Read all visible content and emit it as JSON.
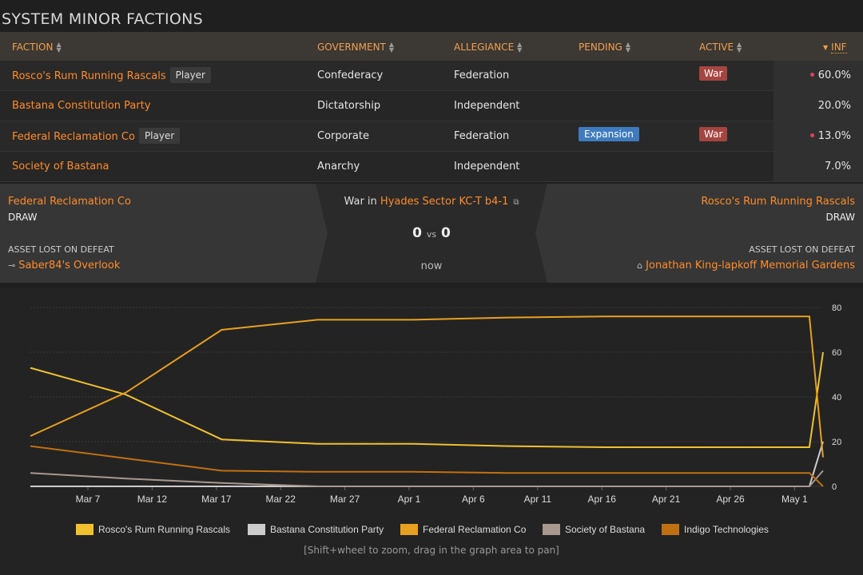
{
  "title": "SYSTEM MINOR FACTIONS",
  "columns": {
    "faction": "FACTION",
    "government": "GOVERNMENT",
    "allegiance": "ALLEGIANCE",
    "pending": "PENDING",
    "active": "ACTIVE",
    "inf": "INF"
  },
  "rows": [
    {
      "name": "Rosco's Rum Running Rascals",
      "player": "Player",
      "government": "Confederacy",
      "allegiance": "Federation",
      "pending": "",
      "active": "War",
      "inf": "60.0%",
      "dot": true
    },
    {
      "name": "Bastana Constitution Party",
      "player": "",
      "government": "Dictatorship",
      "allegiance": "Independent",
      "pending": "",
      "active": "",
      "inf": "20.0%",
      "dot": false
    },
    {
      "name": "Federal Reclamation Co",
      "player": "Player",
      "government": "Corporate",
      "allegiance": "Federation",
      "pending": "Expansion",
      "active": "War",
      "inf": "13.0%",
      "dot": true
    },
    {
      "name": "Society of Bastana",
      "player": "",
      "government": "Anarchy",
      "allegiance": "Independent",
      "pending": "",
      "active": "",
      "inf": "7.0%",
      "dot": false
    }
  ],
  "war": {
    "left_faction": "Federal Reclamation Co",
    "left_status": "DRAW",
    "left_asset_label": "ASSET LOST ON DEFEAT",
    "left_asset": "Saber84's Overlook",
    "war_in": "War in",
    "system": "Hyades Sector KC-T b4-1",
    "score_left": "0",
    "vs": "vs",
    "score_right": "0",
    "when": "now",
    "right_faction": "Rosco's Rum Running Rascals",
    "right_status": "DRAW",
    "right_asset_label": "ASSET LOST ON DEFEAT",
    "right_asset": "Jonathan King-lapkoff Memorial Gardens"
  },
  "chart_data": {
    "type": "line",
    "x_ticks": [
      "Mar 7",
      "Mar 12",
      "Mar 17",
      "Mar 22",
      "Mar 27",
      "Apr 1",
      "Apr 6",
      "Apr 11",
      "Apr 16",
      "Apr 21",
      "Apr 26",
      "May 1"
    ],
    "y_ticks": [
      0,
      20,
      40,
      60,
      80
    ],
    "ylim": [
      0,
      80
    ],
    "x_days_range": [
      2,
      60
    ],
    "series": [
      {
        "name": "Rosco's Rum Running Rascals",
        "color": "#f0c030",
        "x": [
          2,
          9,
          16,
          23,
          30,
          37,
          44,
          51,
          58,
          59,
          60
        ],
        "values": [
          53,
          41,
          21,
          19,
          19,
          18,
          17.5,
          17.5,
          17.5,
          17.5,
          60
        ]
      },
      {
        "name": "Bastana Constitution Party",
        "color": "#cccccc",
        "x": [
          2,
          9,
          16,
          23,
          30,
          37,
          44,
          51,
          58,
          59,
          60
        ],
        "values": [
          0,
          0,
          0,
          0,
          0,
          0,
          0,
          0,
          0,
          0,
          20
        ]
      },
      {
        "name": "Federal Reclamation Co",
        "color": "#e8a020",
        "x": [
          2,
          9,
          16,
          23,
          30,
          37,
          44,
          51,
          58,
          59,
          60
        ],
        "values": [
          22.5,
          42,
          70,
          74.5,
          74.5,
          75.5,
          76,
          76,
          76,
          76,
          13
        ]
      },
      {
        "name": "Society of Bastana",
        "color": "#a89890",
        "x": [
          2,
          9,
          16,
          23,
          30,
          37,
          44,
          51,
          58,
          59,
          60
        ],
        "values": [
          6,
          3.5,
          1.5,
          0,
          0,
          0,
          0,
          0,
          0,
          0,
          7
        ]
      },
      {
        "name": "Indigo Technologies",
        "color": "#c07010",
        "x": [
          2,
          9,
          16,
          23,
          30,
          37,
          44,
          51,
          58,
          59,
          60
        ],
        "values": [
          18,
          12.5,
          7,
          6.5,
          6.5,
          6,
          6,
          6,
          6,
          6,
          0
        ]
      }
    ]
  },
  "hint": "[Shift+wheel to zoom, drag in the graph area to pan]"
}
